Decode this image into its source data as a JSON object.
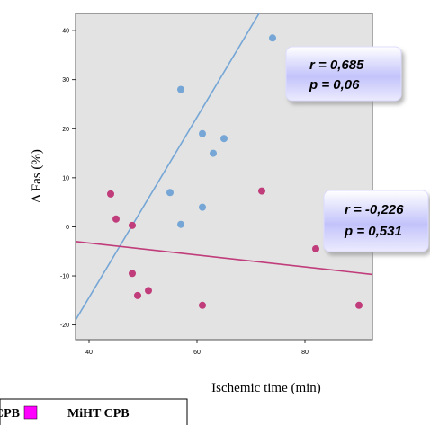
{
  "chart_data": {
    "type": "scatter",
    "xlabel": "Ischemic time (min)",
    "ylabel": "Δ Fas (%)",
    "xlim": [
      37.5,
      92.5
    ],
    "ylim": [
      -23,
      43.5
    ],
    "x_ticks": [
      40,
      60,
      80
    ],
    "y_ticks": [
      -20,
      -10,
      0,
      10,
      20,
      30,
      40
    ],
    "grid": false,
    "series": [
      {
        "name": "CPB",
        "color": "#75a6d6",
        "points": [
          {
            "x": 57,
            "y": 28
          },
          {
            "x": 74,
            "y": 38.5
          },
          {
            "x": 61,
            "y": 19
          },
          {
            "x": 65,
            "y": 18
          },
          {
            "x": 63,
            "y": 15
          },
          {
            "x": 55,
            "y": 7
          },
          {
            "x": 61,
            "y": 4
          },
          {
            "x": 57,
            "y": 0.5
          }
        ],
        "regression": {
          "x": [
            37.5,
            71.5
          ],
          "y": [
            -19,
            43.5
          ]
        },
        "annotation": {
          "r_text": "r = 0,685",
          "p_text": "p = 0,06"
        }
      },
      {
        "name": "MiHT CPB",
        "color": "#c03c7a",
        "points": [
          {
            "x": 44,
            "y": 6.7
          },
          {
            "x": 45,
            "y": 1.6
          },
          {
            "x": 48,
            "y": 0.3
          },
          {
            "x": 72,
            "y": 7.3
          },
          {
            "x": 48,
            "y": -9.5
          },
          {
            "x": 51,
            "y": -13
          },
          {
            "x": 49,
            "y": -14
          },
          {
            "x": 61,
            "y": -16
          },
          {
            "x": 82,
            "y": -4.5
          },
          {
            "x": 90,
            "y": -16
          }
        ],
        "regression": {
          "x": [
            37.5,
            92.5
          ],
          "y": [
            -3,
            -9.7
          ]
        },
        "annotation": {
          "r_text": "r = -0,226",
          "p_text": "p = 0,531"
        }
      }
    ],
    "legend": {
      "placement": "bottom-left",
      "swatch_color": "#ff00ff"
    }
  }
}
